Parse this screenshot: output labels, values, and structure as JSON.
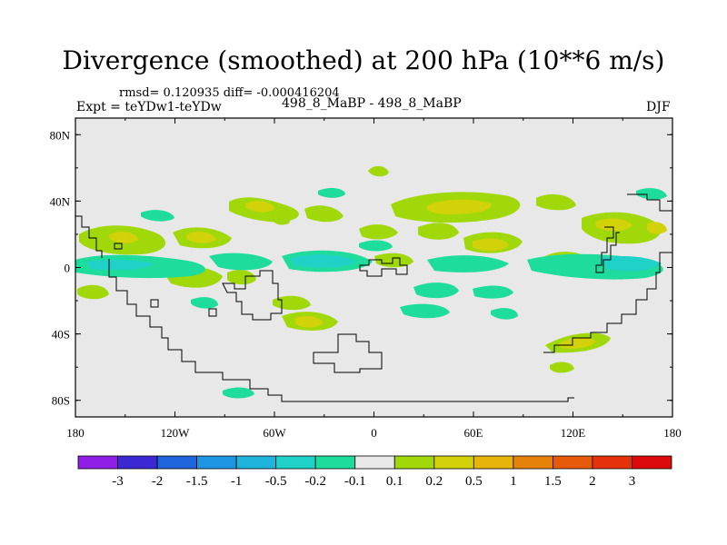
{
  "title": "Divergence (smoothed) at 200 hPa (10**6 m/s)",
  "stats": "rmsd= 0.120935 diff= -0.000416204",
  "experiment": "Expt = teYDw1-teYDw",
  "case_label": "498_8_MaBP - 498_8_MaBP",
  "season": "DJF",
  "latitude_labels": [
    "80N",
    "40N",
    "0",
    "40S",
    "80S"
  ],
  "longitude_labels": [
    "180",
    "120W",
    "60W",
    "0",
    "60E",
    "120E",
    "180"
  ],
  "colorbar": {
    "labels": [
      "-3",
      "-2",
      "-1.5",
      "-1",
      "-0.5",
      "-0.2",
      "-0.1",
      "0.1",
      "0.2",
      "0.5",
      "1",
      "1.5",
      "2",
      "3"
    ],
    "colors": [
      "#8f1ee6",
      "#3c28d2",
      "#1e64dc",
      "#1e96e1",
      "#1eb4dc",
      "#1ed2c8",
      "#1edc9b",
      "#e8e8e8",
      "#a0d80a",
      "#d2d20a",
      "#e6b40a",
      "#e6820a",
      "#e65a0a",
      "#e6320a",
      "#dc0a0a"
    ]
  },
  "field_colors": {
    "background": "#e8e8e8",
    "neg_weak": "#1edc9b",
    "neg_mid": "#1ed2c8",
    "neg_strong": "#1eb4dc",
    "pos_weak": "#a0d80a",
    "pos_mid": "#d2d20a",
    "pos_strong": "#e6b40a"
  }
}
